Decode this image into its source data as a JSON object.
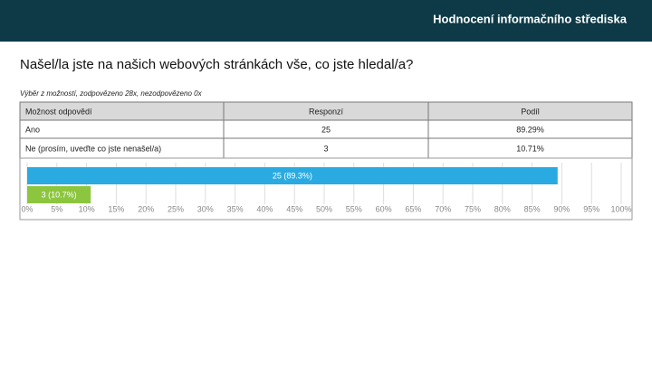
{
  "header": {
    "title": "Hodnocení informačního střediska"
  },
  "question": "Našel/la jste na našich webových stránkách vše, co jste hledal/a?",
  "summary": "Výběr z možností, zodpovězeno 28x, nezodpovězeno 0x",
  "table": {
    "headers": [
      "Možnost odpovědí",
      "Responzí",
      "Podíl"
    ],
    "rows": [
      [
        "Ano",
        "25",
        "89.29%"
      ],
      [
        "Ne (prosím, uveďte co jste nenašel/a)",
        "3",
        "10.71%"
      ]
    ]
  },
  "chart_data": {
    "type": "bar",
    "orientation": "horizontal",
    "values": [
      89.3,
      10.7
    ],
    "value_labels": [
      "25 (89.3%)",
      "3 (10.7%)"
    ],
    "colors": [
      "#29abe2",
      "#8cc63f"
    ],
    "grid": true,
    "xlim": [
      0,
      100
    ],
    "xticks": [
      {
        "value": 0,
        "label": "0%"
      },
      {
        "value": 5,
        "label": "5%"
      },
      {
        "value": 10,
        "label": "10%"
      },
      {
        "value": 15,
        "label": "15%"
      },
      {
        "value": 20,
        "label": "20%"
      },
      {
        "value": 25,
        "label": "25%"
      },
      {
        "value": 30,
        "label": "30%"
      },
      {
        "value": 35,
        "label": "35%"
      },
      {
        "value": 40,
        "label": "40%"
      },
      {
        "value": 45,
        "label": "45%"
      },
      {
        "value": 50,
        "label": "50%"
      },
      {
        "value": 55,
        "label": "55%"
      },
      {
        "value": 60,
        "label": "60%"
      },
      {
        "value": 65,
        "label": "65%"
      },
      {
        "value": 70,
        "label": "70%"
      },
      {
        "value": 75,
        "label": "75%"
      },
      {
        "value": 80,
        "label": "80%"
      },
      {
        "value": 85,
        "label": "85%"
      },
      {
        "value": 90,
        "label": "90%"
      },
      {
        "value": 95,
        "label": "95%"
      },
      {
        "value": 100,
        "label": "100%"
      }
    ]
  }
}
